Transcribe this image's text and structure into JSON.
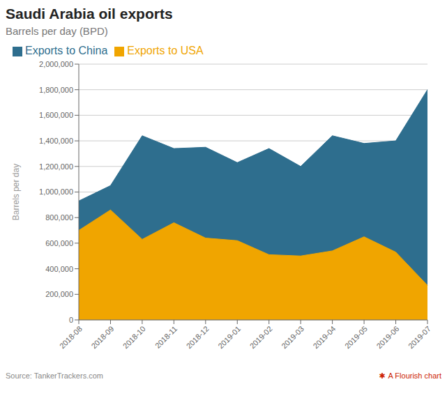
{
  "chart_data": {
    "type": "area",
    "title": "Saudi Arabia oil exports",
    "subtitle": "Barrels per day (BPD)",
    "ylabel": "Barrels per day",
    "source": "Source: TankerTrackers.com",
    "credit": "A Flourish chart",
    "credit_mark": "✱",
    "categories": [
      "2018-08",
      "2018-09",
      "2018-10",
      "2018-11",
      "2018-12",
      "2019-01",
      "2019-02",
      "2019-03",
      "2019-04",
      "2019-05",
      "2019-06",
      "2019-07"
    ],
    "series": [
      {
        "name": "Exports to China",
        "color": "#2e6e8e",
        "values": [
          930000,
          1050000,
          1440000,
          1340000,
          1350000,
          1230000,
          1340000,
          1200000,
          1440000,
          1380000,
          1400000,
          1800000
        ]
      },
      {
        "name": "Exports to USA",
        "color": "#f0a500",
        "values": [
          700000,
          860000,
          630000,
          760000,
          640000,
          620000,
          510000,
          500000,
          540000,
          650000,
          530000,
          270000
        ]
      }
    ],
    "ylim": [
      0,
      2000000
    ],
    "yticks": [
      0,
      {
        "value": 200000,
        "label": "200,000"
      },
      {
        "value": 400000,
        "label": "400,000"
      },
      {
        "value": 600000,
        "label": "600,000"
      },
      {
        "value": 800000,
        "label": "800,000"
      },
      {
        "value": 1000000,
        "label": "1,000,000"
      },
      {
        "value": 1200000,
        "label": "1,200,000"
      },
      {
        "value": 1400000,
        "label": "1,400,000"
      },
      {
        "value": 1600000,
        "label": "1,600,000"
      },
      {
        "value": 1800000,
        "label": "1,800,000"
      },
      {
        "value": 2000000,
        "label": "2,000,000"
      }
    ],
    "grid": true,
    "legend": "upper left"
  }
}
